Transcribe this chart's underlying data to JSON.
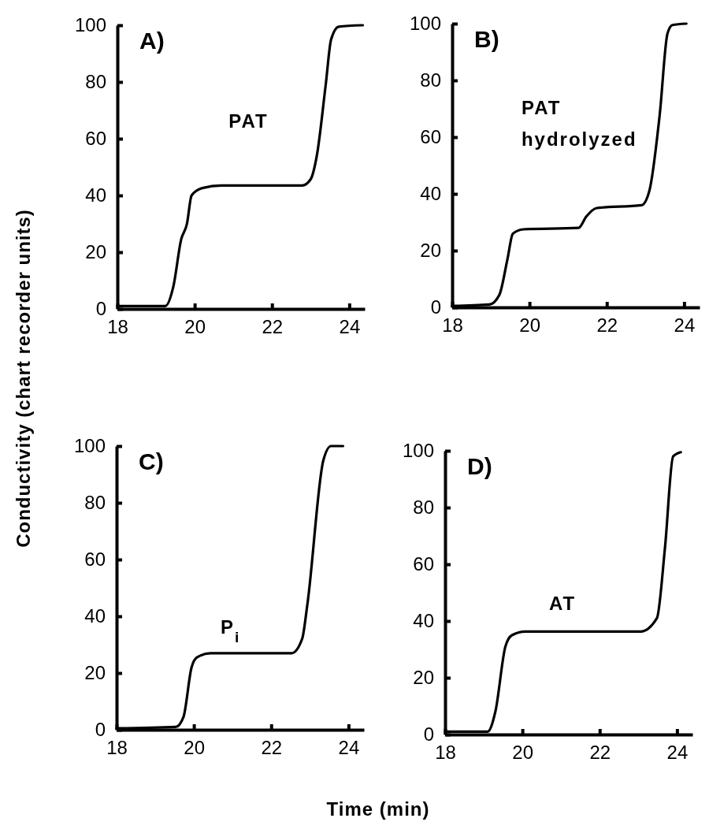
{
  "chart_data": [
    {
      "type": "line",
      "title": "A)",
      "ylabel": "Conductivity (chart recorder units)",
      "xlim": [
        18,
        24.4
      ],
      "ylim": [
        0,
        100
      ],
      "xticks": [
        18,
        20,
        22,
        24
      ],
      "yticks": [
        0,
        20,
        40,
        60,
        80,
        100
      ],
      "grid": false,
      "marker": "none",
      "series": [
        {
          "name": "PAT",
          "color": "#000000",
          "x": [
            18.0,
            19.24,
            19.45,
            19.65,
            19.8,
            19.92,
            20.2,
            20.7,
            22.78,
            23.0,
            23.16,
            23.39,
            23.53,
            23.73,
            24.35
          ],
          "values": [
            1,
            1,
            8,
            24.5,
            30,
            40,
            42.6,
            43.5,
            43.5,
            45.7,
            54,
            79,
            95,
            99.5,
            100
          ]
        }
      ]
    },
    {
      "type": "line",
      "title": "B)",
      "xlim": [
        18,
        24.4
      ],
      "ylim": [
        0,
        100
      ],
      "xticks": [
        18,
        20,
        22,
        24
      ],
      "yticks": [
        0,
        20,
        40,
        60,
        80,
        100
      ],
      "grid": false,
      "marker": "none",
      "series": [
        {
          "name": "PAT hydrolyzed",
          "color": "#000000",
          "x": [
            18.0,
            18.96,
            19.22,
            19.43,
            19.57,
            19.84,
            21.27,
            21.47,
            21.74,
            22.9,
            23.1,
            23.37,
            23.57,
            23.7,
            24.06
          ],
          "values": [
            0.5,
            1,
            4.4,
            17,
            26,
            27.5,
            28,
            32,
            35,
            36,
            41,
            68,
            96.5,
            99.5,
            100
          ]
        }
      ]
    },
    {
      "type": "line",
      "title": "C)",
      "xlabel": "Time (min)",
      "xlim": [
        18,
        24.4
      ],
      "ylim": [
        0,
        100
      ],
      "xticks": [
        18,
        20,
        22,
        24
      ],
      "yticks": [
        0,
        20,
        40,
        60,
        80,
        100
      ],
      "grid": false,
      "marker": "none",
      "series": [
        {
          "name": "P$_{i}$",
          "color": "#000000",
          "x": [
            18.0,
            19.53,
            19.73,
            19.94,
            20.08,
            20.43,
            22.53,
            22.8,
            22.94,
            23.35,
            23.55,
            23.86
          ],
          "values": [
            0.5,
            1,
            4.5,
            22,
            25.5,
            27,
            27,
            32,
            44.6,
            95,
            100,
            100
          ]
        }
      ]
    },
    {
      "type": "line",
      "title": "D)",
      "xlim": [
        18,
        24.4
      ],
      "ylim": [
        0,
        100
      ],
      "xticks": [
        18,
        20,
        22,
        24
      ],
      "yticks": [
        0,
        20,
        40,
        60,
        80,
        100
      ],
      "grid": false,
      "marker": "none",
      "series": [
        {
          "name": "AT",
          "color": "#000000",
          "x": [
            18.0,
            19.1,
            19.3,
            19.56,
            19.73,
            20.08,
            23.06,
            23.48,
            23.69,
            23.9,
            24.1
          ],
          "values": [
            1,
            1,
            8,
            31,
            35,
            36.3,
            36.3,
            41,
            66,
            98,
            99.5
          ]
        }
      ]
    }
  ]
}
